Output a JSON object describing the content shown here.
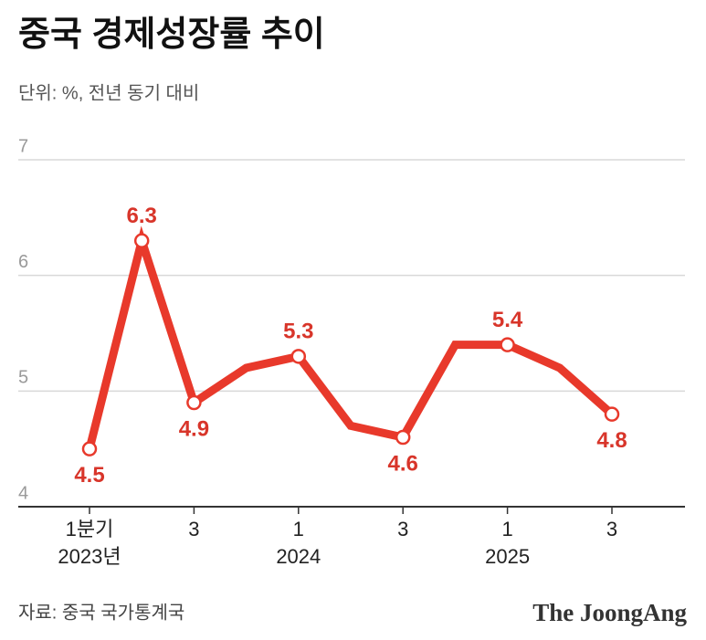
{
  "chart_data": {
    "type": "line",
    "title": "중국 경제성장률 추이",
    "subtitle": "단위: %, 전년 동기 대비",
    "source": "자료: 중국 국가통계국",
    "brand": "The JoongAng",
    "categories": [
      "1분기",
      null,
      "3",
      null,
      "1",
      null,
      "3",
      null,
      "1",
      null,
      "3"
    ],
    "year_labels": [
      "2023년",
      "2024",
      "2025"
    ],
    "values": [
      4.5,
      6.3,
      4.9,
      5.2,
      5.3,
      4.7,
      4.6,
      5.4,
      5.4,
      5.2,
      4.8
    ],
    "value_labels": [
      "4.5",
      "6.3",
      "4.9",
      null,
      "5.3",
      null,
      "4.6",
      null,
      "5.4",
      null,
      "4.8"
    ],
    "color": "#e8392b",
    "ylim": [
      4,
      7
    ],
    "yticks": [
      4,
      5,
      6,
      7
    ],
    "grid": true
  }
}
